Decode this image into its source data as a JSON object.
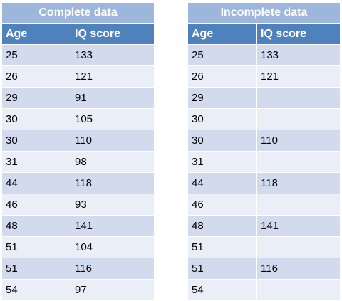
{
  "tables": [
    {
      "title": "Complete data",
      "headers": [
        "Age",
        "IQ score"
      ],
      "rows": [
        [
          "25",
          "133"
        ],
        [
          "26",
          "121"
        ],
        [
          "29",
          "91"
        ],
        [
          "30",
          "105"
        ],
        [
          "30",
          "110"
        ],
        [
          "31",
          "98"
        ],
        [
          "44",
          "118"
        ],
        [
          "46",
          "93"
        ],
        [
          "48",
          "141"
        ],
        [
          "51",
          "104"
        ],
        [
          "51",
          "116"
        ],
        [
          "54",
          "97"
        ]
      ]
    },
    {
      "title": "Incomplete data",
      "headers": [
        "Age",
        "IQ score"
      ],
      "rows": [
        [
          "25",
          "133"
        ],
        [
          "26",
          "121"
        ],
        [
          "29",
          ""
        ],
        [
          "30",
          ""
        ],
        [
          "30",
          "110"
        ],
        [
          "31",
          ""
        ],
        [
          "44",
          "118"
        ],
        [
          "46",
          ""
        ],
        [
          "48",
          "141"
        ],
        [
          "51",
          ""
        ],
        [
          "51",
          "116"
        ],
        [
          "54",
          ""
        ]
      ]
    }
  ],
  "colors": {
    "title_bg": "#9eb6dc",
    "header_bg": "#4f81bd",
    "row_odd_bg": "#d1dbed",
    "row_even_bg": "#e9eef7"
  }
}
